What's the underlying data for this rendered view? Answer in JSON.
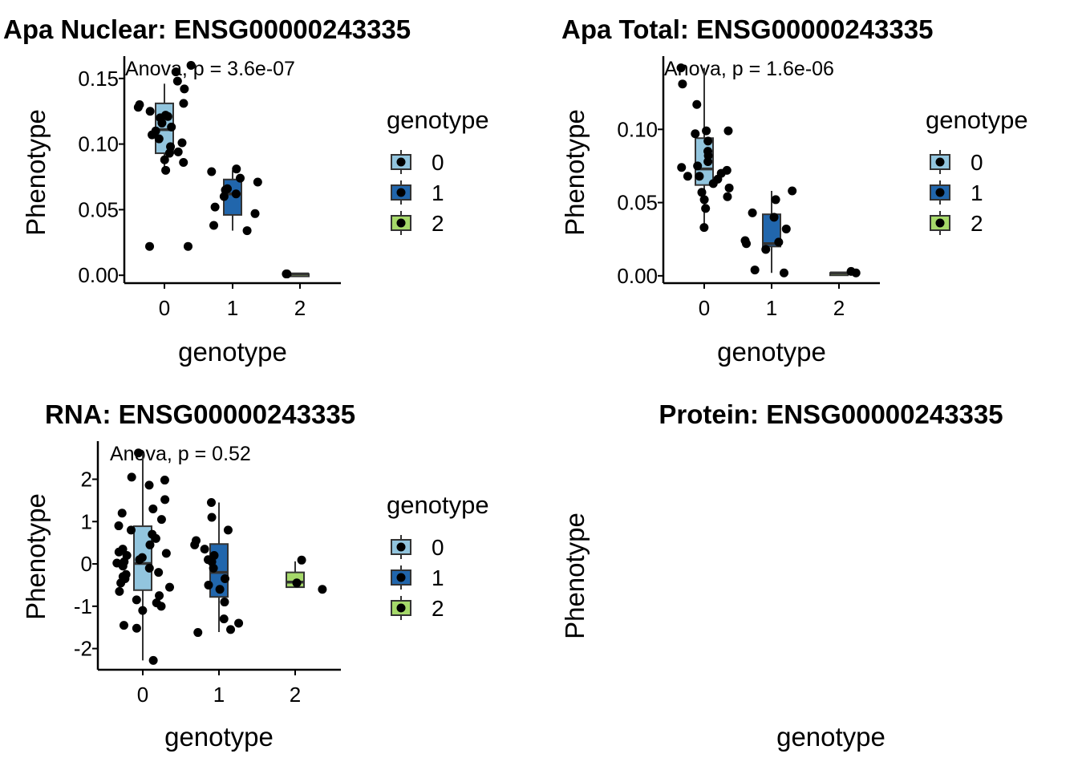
{
  "chart_data": [
    {
      "type": "boxplot",
      "title": "Apa Nuclear: ENSG00000243335",
      "xlabel": "genotype",
      "ylabel": "Phenotype",
      "annotation": "Anova, p = 3.6e-07",
      "categories": [
        "0",
        "1",
        "2"
      ],
      "ylim": [
        -0.006,
        0.167
      ],
      "yticks": [
        0.0,
        0.05,
        0.1,
        0.15
      ],
      "ytick_labels": [
        "0.00",
        "0.05",
        "0.10",
        "0.15"
      ],
      "legend_title": "genotype",
      "legend_labels": [
        "0",
        "1",
        "2"
      ],
      "boxes": [
        {
          "category": "0",
          "color": "#92c5de",
          "q1": 0.093,
          "median": 0.111,
          "q3": 0.131,
          "whisker_low": 0.079,
          "whisker_high": 0.146
        },
        {
          "category": "1",
          "color": "#2166ac",
          "q1": 0.046,
          "median": 0.062,
          "q3": 0.073,
          "whisker_low": 0.034,
          "whisker_high": 0.08
        },
        {
          "category": "2",
          "color": "#a6d96a",
          "q1": 0.001,
          "median": 0.001,
          "q3": 0.001,
          "whisker_low": 0.001,
          "whisker_high": 0.001
        }
      ],
      "points": [
        {
          "category": "0",
          "y": 0.148
        },
        {
          "category": "0",
          "y": 0.121
        },
        {
          "category": "0",
          "y": 0.116
        },
        {
          "category": "0",
          "y": 0.107
        },
        {
          "category": "0",
          "y": 0.101
        },
        {
          "category": "0",
          "y": 0.094
        },
        {
          "category": "0",
          "y": 0.088
        },
        {
          "category": "0",
          "y": 0.08
        },
        {
          "category": "0",
          "y": 0.122
        },
        {
          "category": "0",
          "y": 0.128
        },
        {
          "category": "0",
          "y": 0.093
        },
        {
          "category": "0",
          "y": 0.098
        },
        {
          "category": "0",
          "y": 0.104
        },
        {
          "category": "0",
          "y": 0.086
        },
        {
          "category": "0",
          "y": 0.11
        },
        {
          "category": "0",
          "y": 0.12
        },
        {
          "category": "0",
          "y": 0.125
        },
        {
          "category": "0",
          "y": 0.16
        },
        {
          "category": "0",
          "y": 0.155
        },
        {
          "category": "0",
          "y": 0.142
        },
        {
          "category": "0",
          "y": 0.131
        },
        {
          "category": "0",
          "y": 0.13
        },
        {
          "category": "0",
          "y": 0.113
        },
        {
          "category": "0",
          "y": 0.022
        },
        {
          "category": "0",
          "y": 0.022
        },
        {
          "category": "1",
          "y": 0.034
        },
        {
          "category": "1",
          "y": 0.038
        },
        {
          "category": "1",
          "y": 0.047
        },
        {
          "category": "1",
          "y": 0.052
        },
        {
          "category": "1",
          "y": 0.06
        },
        {
          "category": "1",
          "y": 0.062
        },
        {
          "category": "1",
          "y": 0.065
        },
        {
          "category": "1",
          "y": 0.066
        },
        {
          "category": "1",
          "y": 0.081
        },
        {
          "category": "1",
          "y": 0.079
        },
        {
          "category": "1",
          "y": 0.074
        },
        {
          "category": "1",
          "y": 0.071
        },
        {
          "category": "2",
          "y": 0.001
        },
        {
          "category": "2",
          "y": 0.001
        }
      ]
    },
    {
      "type": "boxplot",
      "title": "Apa Total: ENSG00000243335",
      "xlabel": "genotype",
      "ylabel": "Phenotype",
      "annotation": "Anova, p = 1.6e-06",
      "categories": [
        "0",
        "1",
        "2"
      ],
      "ylim": [
        -0.005,
        0.15
      ],
      "yticks": [
        0.0,
        0.05,
        0.1
      ],
      "ytick_labels": [
        "0.00",
        "0.05",
        "0.10"
      ],
      "legend_title": "genotype",
      "legend_labels": [
        "0",
        "1",
        "2"
      ],
      "boxes": [
        {
          "category": "0",
          "color": "#92c5de",
          "q1": 0.062,
          "median": 0.073,
          "q3": 0.094,
          "whisker_low": 0.033,
          "whisker_high": 0.142
        },
        {
          "category": "1",
          "color": "#2166ac",
          "q1": 0.02,
          "median": 0.022,
          "q3": 0.042,
          "whisker_low": 0.002,
          "whisker_high": 0.058
        },
        {
          "category": "2",
          "color": "#a6d96a",
          "q1": 0.002,
          "median": 0.002,
          "q3": 0.002,
          "whisker_low": 0.002,
          "whisker_high": 0.002
        }
      ],
      "points": [
        {
          "category": "0",
          "y": 0.142
        },
        {
          "category": "0",
          "y": 0.117
        },
        {
          "category": "0",
          "y": 0.097
        },
        {
          "category": "0",
          "y": 0.099
        },
        {
          "category": "0",
          "y": 0.099
        },
        {
          "category": "0",
          "y": 0.092
        },
        {
          "category": "0",
          "y": 0.085
        },
        {
          "category": "0",
          "y": 0.082
        },
        {
          "category": "0",
          "y": 0.078
        },
        {
          "category": "0",
          "y": 0.075
        },
        {
          "category": "0",
          "y": 0.072
        },
        {
          "category": "0",
          "y": 0.07
        },
        {
          "category": "0",
          "y": 0.068
        },
        {
          "category": "0",
          "y": 0.066
        },
        {
          "category": "0",
          "y": 0.063
        },
        {
          "category": "0",
          "y": 0.06
        },
        {
          "category": "0",
          "y": 0.057
        },
        {
          "category": "0",
          "y": 0.054
        },
        {
          "category": "0",
          "y": 0.052
        },
        {
          "category": "0",
          "y": 0.046
        },
        {
          "category": "0",
          "y": 0.033
        },
        {
          "category": "0",
          "y": 0.131
        },
        {
          "category": "0",
          "y": 0.074
        },
        {
          "category": "0",
          "y": 0.068
        },
        {
          "category": "1",
          "y": 0.058
        },
        {
          "category": "1",
          "y": 0.052
        },
        {
          "category": "1",
          "y": 0.043
        },
        {
          "category": "1",
          "y": 0.04
        },
        {
          "category": "1",
          "y": 0.032
        },
        {
          "category": "1",
          "y": 0.024
        },
        {
          "category": "1",
          "y": 0.023
        },
        {
          "category": "1",
          "y": 0.022
        },
        {
          "category": "1",
          "y": 0.018
        },
        {
          "category": "1",
          "y": 0.004
        },
        {
          "category": "1",
          "y": 0.002
        },
        {
          "category": "2",
          "y": 0.003
        },
        {
          "category": "2",
          "y": 0.002
        }
      ]
    },
    {
      "type": "boxplot",
      "title": "RNA: ENSG00000243335",
      "xlabel": "genotype",
      "ylabel": "Phenotype",
      "annotation": "Anova, p = 0.52",
      "categories": [
        "0",
        "1",
        "2"
      ],
      "ylim": [
        -2.5,
        2.9
      ],
      "yticks": [
        -2,
        -1,
        0,
        1,
        2
      ],
      "ytick_labels": [
        "-2",
        "-1",
        "0",
        "1",
        "2"
      ],
      "legend_title": "genotype",
      "legend_labels": [
        "0",
        "1",
        "2"
      ],
      "boxes": [
        {
          "category": "0",
          "color": "#92c5de",
          "q1": -0.62,
          "median": 0.01,
          "q3": 0.89,
          "whisker_low": -2.28,
          "whisker_high": 2.62
        },
        {
          "category": "1",
          "color": "#2166ac",
          "q1": -0.78,
          "median": -0.2,
          "q3": 0.47,
          "whisker_low": -1.61,
          "whisker_high": 1.45
        },
        {
          "category": "2",
          "color": "#a6d96a",
          "q1": -0.55,
          "median": -0.43,
          "q3": -0.2,
          "whisker_low": -0.55,
          "whisker_high": 0.06
        }
      ],
      "points": [
        {
          "category": "0",
          "y": 2.62
        },
        {
          "category": "0",
          "y": 2.05
        },
        {
          "category": "0",
          "y": 1.98
        },
        {
          "category": "0",
          "y": 1.86
        },
        {
          "category": "0",
          "y": 1.52
        },
        {
          "category": "0",
          "y": 1.3
        },
        {
          "category": "0",
          "y": 1.2
        },
        {
          "category": "0",
          "y": 1.05
        },
        {
          "category": "0",
          "y": 0.9
        },
        {
          "category": "0",
          "y": 0.8
        },
        {
          "category": "0",
          "y": 0.6
        },
        {
          "category": "0",
          "y": 0.45
        },
        {
          "category": "0",
          "y": 0.35
        },
        {
          "category": "0",
          "y": 0.28
        },
        {
          "category": "0",
          "y": 0.2
        },
        {
          "category": "0",
          "y": 0.15
        },
        {
          "category": "0",
          "y": 0.1
        },
        {
          "category": "0",
          "y": 0.05
        },
        {
          "category": "0",
          "y": 0.02
        },
        {
          "category": "0",
          "y": -0.05
        },
        {
          "category": "0",
          "y": -0.1
        },
        {
          "category": "0",
          "y": -0.2
        },
        {
          "category": "0",
          "y": -0.25
        },
        {
          "category": "0",
          "y": -0.35
        },
        {
          "category": "0",
          "y": -0.45
        },
        {
          "category": "0",
          "y": -0.55
        },
        {
          "category": "0",
          "y": -0.65
        },
        {
          "category": "0",
          "y": -0.75
        },
        {
          "category": "0",
          "y": -0.85
        },
        {
          "category": "0",
          "y": -0.92
        },
        {
          "category": "0",
          "y": -1.0
        },
        {
          "category": "0",
          "y": -1.1
        },
        {
          "category": "0",
          "y": -1.45
        },
        {
          "category": "0",
          "y": -1.52
        },
        {
          "category": "0",
          "y": -2.28
        },
        {
          "category": "0",
          "y": 0.25
        },
        {
          "category": "0",
          "y": -0.3
        },
        {
          "category": "0",
          "y": 0.7
        },
        {
          "category": "1",
          "y": 1.45
        },
        {
          "category": "1",
          "y": 1.1
        },
        {
          "category": "1",
          "y": 0.8
        },
        {
          "category": "1",
          "y": 0.55
        },
        {
          "category": "1",
          "y": 0.45
        },
        {
          "category": "1",
          "y": 0.35
        },
        {
          "category": "1",
          "y": 0.2
        },
        {
          "category": "1",
          "y": 0.1
        },
        {
          "category": "1",
          "y": 0.05
        },
        {
          "category": "1",
          "y": -0.1
        },
        {
          "category": "1",
          "y": -0.35
        },
        {
          "category": "1",
          "y": -0.5
        },
        {
          "category": "1",
          "y": -0.6
        },
        {
          "category": "1",
          "y": -0.9
        },
        {
          "category": "1",
          "y": -1.3
        },
        {
          "category": "1",
          "y": -1.4
        },
        {
          "category": "1",
          "y": -1.55
        },
        {
          "category": "1",
          "y": -1.62
        },
        {
          "category": "2",
          "y": 0.09
        },
        {
          "category": "2",
          "y": -0.45
        },
        {
          "category": "2",
          "y": -0.6
        }
      ]
    },
    {
      "type": "boxplot",
      "title": "Protein: ENSG00000243335",
      "xlabel": "genotype",
      "ylabel": "Phenotype",
      "annotation": "",
      "categories": [],
      "ylim": [
        0,
        1
      ],
      "yticks": [],
      "ytick_labels": [],
      "legend_title": "",
      "legend_labels": [],
      "boxes": [],
      "points": [],
      "empty": true
    }
  ]
}
